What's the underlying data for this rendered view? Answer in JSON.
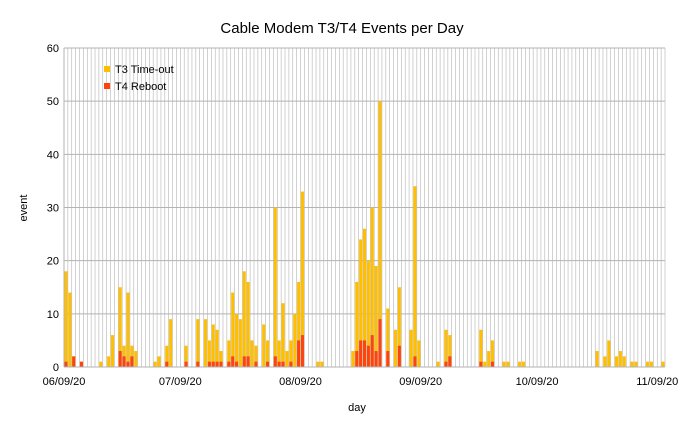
{
  "chart_data": {
    "type": "bar",
    "title": "Cable Modem T3/T4 Events per Day",
    "xlabel": "day",
    "ylabel": "event",
    "ylim": [
      0,
      60
    ],
    "yticks": [
      0,
      10,
      20,
      30,
      40,
      50,
      60
    ],
    "x_range": [
      "2020-06-09",
      "2020-11-10"
    ],
    "xticks": [
      {
        "date": "2020-06-09",
        "label": "06/09/20"
      },
      {
        "date": "2020-07-09",
        "label": "07/09/20"
      },
      {
        "date": "2020-08-09",
        "label": "08/09/20"
      },
      {
        "date": "2020-09-09",
        "label": "09/09/20"
      },
      {
        "date": "2020-10-09",
        "label": "10/09/20"
      },
      {
        "date": "2020-11-09",
        "label": "11/09/20"
      }
    ],
    "grid": true,
    "legend_position": "top-left",
    "colors": {
      "t3": "#ffbf00",
      "t4": "#ff420e",
      "grid": "#b3b3b3"
    },
    "series": [
      {
        "name": "T3 Time-out",
        "color": "#ffbf00",
        "points": [
          [
            "2020-06-09",
            18
          ],
          [
            "2020-06-10",
            14
          ],
          [
            "2020-06-11",
            2
          ],
          [
            "2020-06-13",
            1
          ],
          [
            "2020-06-18",
            1
          ],
          [
            "2020-06-20",
            2
          ],
          [
            "2020-06-21",
            6
          ],
          [
            "2020-06-23",
            15
          ],
          [
            "2020-06-24",
            4
          ],
          [
            "2020-06-25",
            14
          ],
          [
            "2020-06-26",
            4
          ],
          [
            "2020-06-27",
            3
          ],
          [
            "2020-07-02",
            1
          ],
          [
            "2020-07-03",
            2
          ],
          [
            "2020-07-05",
            4
          ],
          [
            "2020-07-06",
            9
          ],
          [
            "2020-07-10",
            4
          ],
          [
            "2020-07-13",
            9
          ],
          [
            "2020-07-15",
            9
          ],
          [
            "2020-07-16",
            5
          ],
          [
            "2020-07-17",
            8
          ],
          [
            "2020-07-18",
            7
          ],
          [
            "2020-07-19",
            3
          ],
          [
            "2020-07-21",
            5
          ],
          [
            "2020-07-22",
            14
          ],
          [
            "2020-07-23",
            10
          ],
          [
            "2020-07-24",
            9
          ],
          [
            "2020-07-25",
            18
          ],
          [
            "2020-07-26",
            16
          ],
          [
            "2020-07-27",
            5
          ],
          [
            "2020-07-28",
            4
          ],
          [
            "2020-07-30",
            8
          ],
          [
            "2020-07-31",
            5
          ],
          [
            "2020-08-02",
            30
          ],
          [
            "2020-08-03",
            5
          ],
          [
            "2020-08-04",
            12
          ],
          [
            "2020-08-05",
            3
          ],
          [
            "2020-08-06",
            5
          ],
          [
            "2020-08-07",
            10
          ],
          [
            "2020-08-08",
            16
          ],
          [
            "2020-08-09",
            33
          ],
          [
            "2020-08-13",
            1
          ],
          [
            "2020-08-14",
            1
          ],
          [
            "2020-08-22",
            3
          ],
          [
            "2020-08-23",
            16
          ],
          [
            "2020-08-24",
            24
          ],
          [
            "2020-08-25",
            26
          ],
          [
            "2020-08-26",
            20
          ],
          [
            "2020-08-27",
            30
          ],
          [
            "2020-08-28",
            19
          ],
          [
            "2020-08-29",
            50
          ],
          [
            "2020-08-31",
            11
          ],
          [
            "2020-09-02",
            7
          ],
          [
            "2020-09-03",
            15
          ],
          [
            "2020-09-06",
            7
          ],
          [
            "2020-09-07",
            34
          ],
          [
            "2020-09-08",
            5
          ],
          [
            "2020-09-13",
            1
          ],
          [
            "2020-09-15",
            7
          ],
          [
            "2020-09-16",
            6
          ],
          [
            "2020-09-24",
            7
          ],
          [
            "2020-09-25",
            1
          ],
          [
            "2020-09-26",
            3
          ],
          [
            "2020-09-27",
            5
          ],
          [
            "2020-09-30",
            1
          ],
          [
            "2020-10-01",
            1
          ],
          [
            "2020-10-04",
            1
          ],
          [
            "2020-10-05",
            1
          ],
          [
            "2020-10-24",
            3
          ],
          [
            "2020-10-26",
            2
          ],
          [
            "2020-10-27",
            5
          ],
          [
            "2020-10-29",
            2
          ],
          [
            "2020-10-30",
            3
          ],
          [
            "2020-10-31",
            2
          ],
          [
            "2020-11-02",
            1
          ],
          [
            "2020-11-03",
            1
          ],
          [
            "2020-11-06",
            1
          ],
          [
            "2020-11-07",
            1
          ],
          [
            "2020-11-10",
            1
          ]
        ]
      },
      {
        "name": "T4 Reboot",
        "color": "#ff420e",
        "points": [
          [
            "2020-06-09",
            1
          ],
          [
            "2020-06-11",
            2
          ],
          [
            "2020-06-13",
            1
          ],
          [
            "2020-06-23",
            3
          ],
          [
            "2020-06-24",
            2
          ],
          [
            "2020-06-25",
            1
          ],
          [
            "2020-06-26",
            2
          ],
          [
            "2020-07-05",
            1
          ],
          [
            "2020-07-10",
            1
          ],
          [
            "2020-07-13",
            1
          ],
          [
            "2020-07-16",
            1
          ],
          [
            "2020-07-17",
            1
          ],
          [
            "2020-07-18",
            1
          ],
          [
            "2020-07-19",
            1
          ],
          [
            "2020-07-21",
            1
          ],
          [
            "2020-07-22",
            2
          ],
          [
            "2020-07-23",
            1
          ],
          [
            "2020-07-25",
            2
          ],
          [
            "2020-07-26",
            2
          ],
          [
            "2020-07-28",
            1
          ],
          [
            "2020-07-31",
            1
          ],
          [
            "2020-08-02",
            2
          ],
          [
            "2020-08-03",
            1
          ],
          [
            "2020-08-04",
            1
          ],
          [
            "2020-08-06",
            1
          ],
          [
            "2020-08-08",
            5
          ],
          [
            "2020-08-09",
            6
          ],
          [
            "2020-08-23",
            3
          ],
          [
            "2020-08-24",
            5
          ],
          [
            "2020-08-25",
            5
          ],
          [
            "2020-08-26",
            4
          ],
          [
            "2020-08-27",
            6
          ],
          [
            "2020-08-28",
            3
          ],
          [
            "2020-08-29",
            9
          ],
          [
            "2020-08-31",
            3
          ],
          [
            "2020-09-03",
            4
          ],
          [
            "2020-09-07",
            2
          ],
          [
            "2020-09-15",
            1
          ],
          [
            "2020-09-16",
            2
          ],
          [
            "2020-09-24",
            1
          ],
          [
            "2020-09-27",
            1
          ]
        ]
      }
    ]
  }
}
